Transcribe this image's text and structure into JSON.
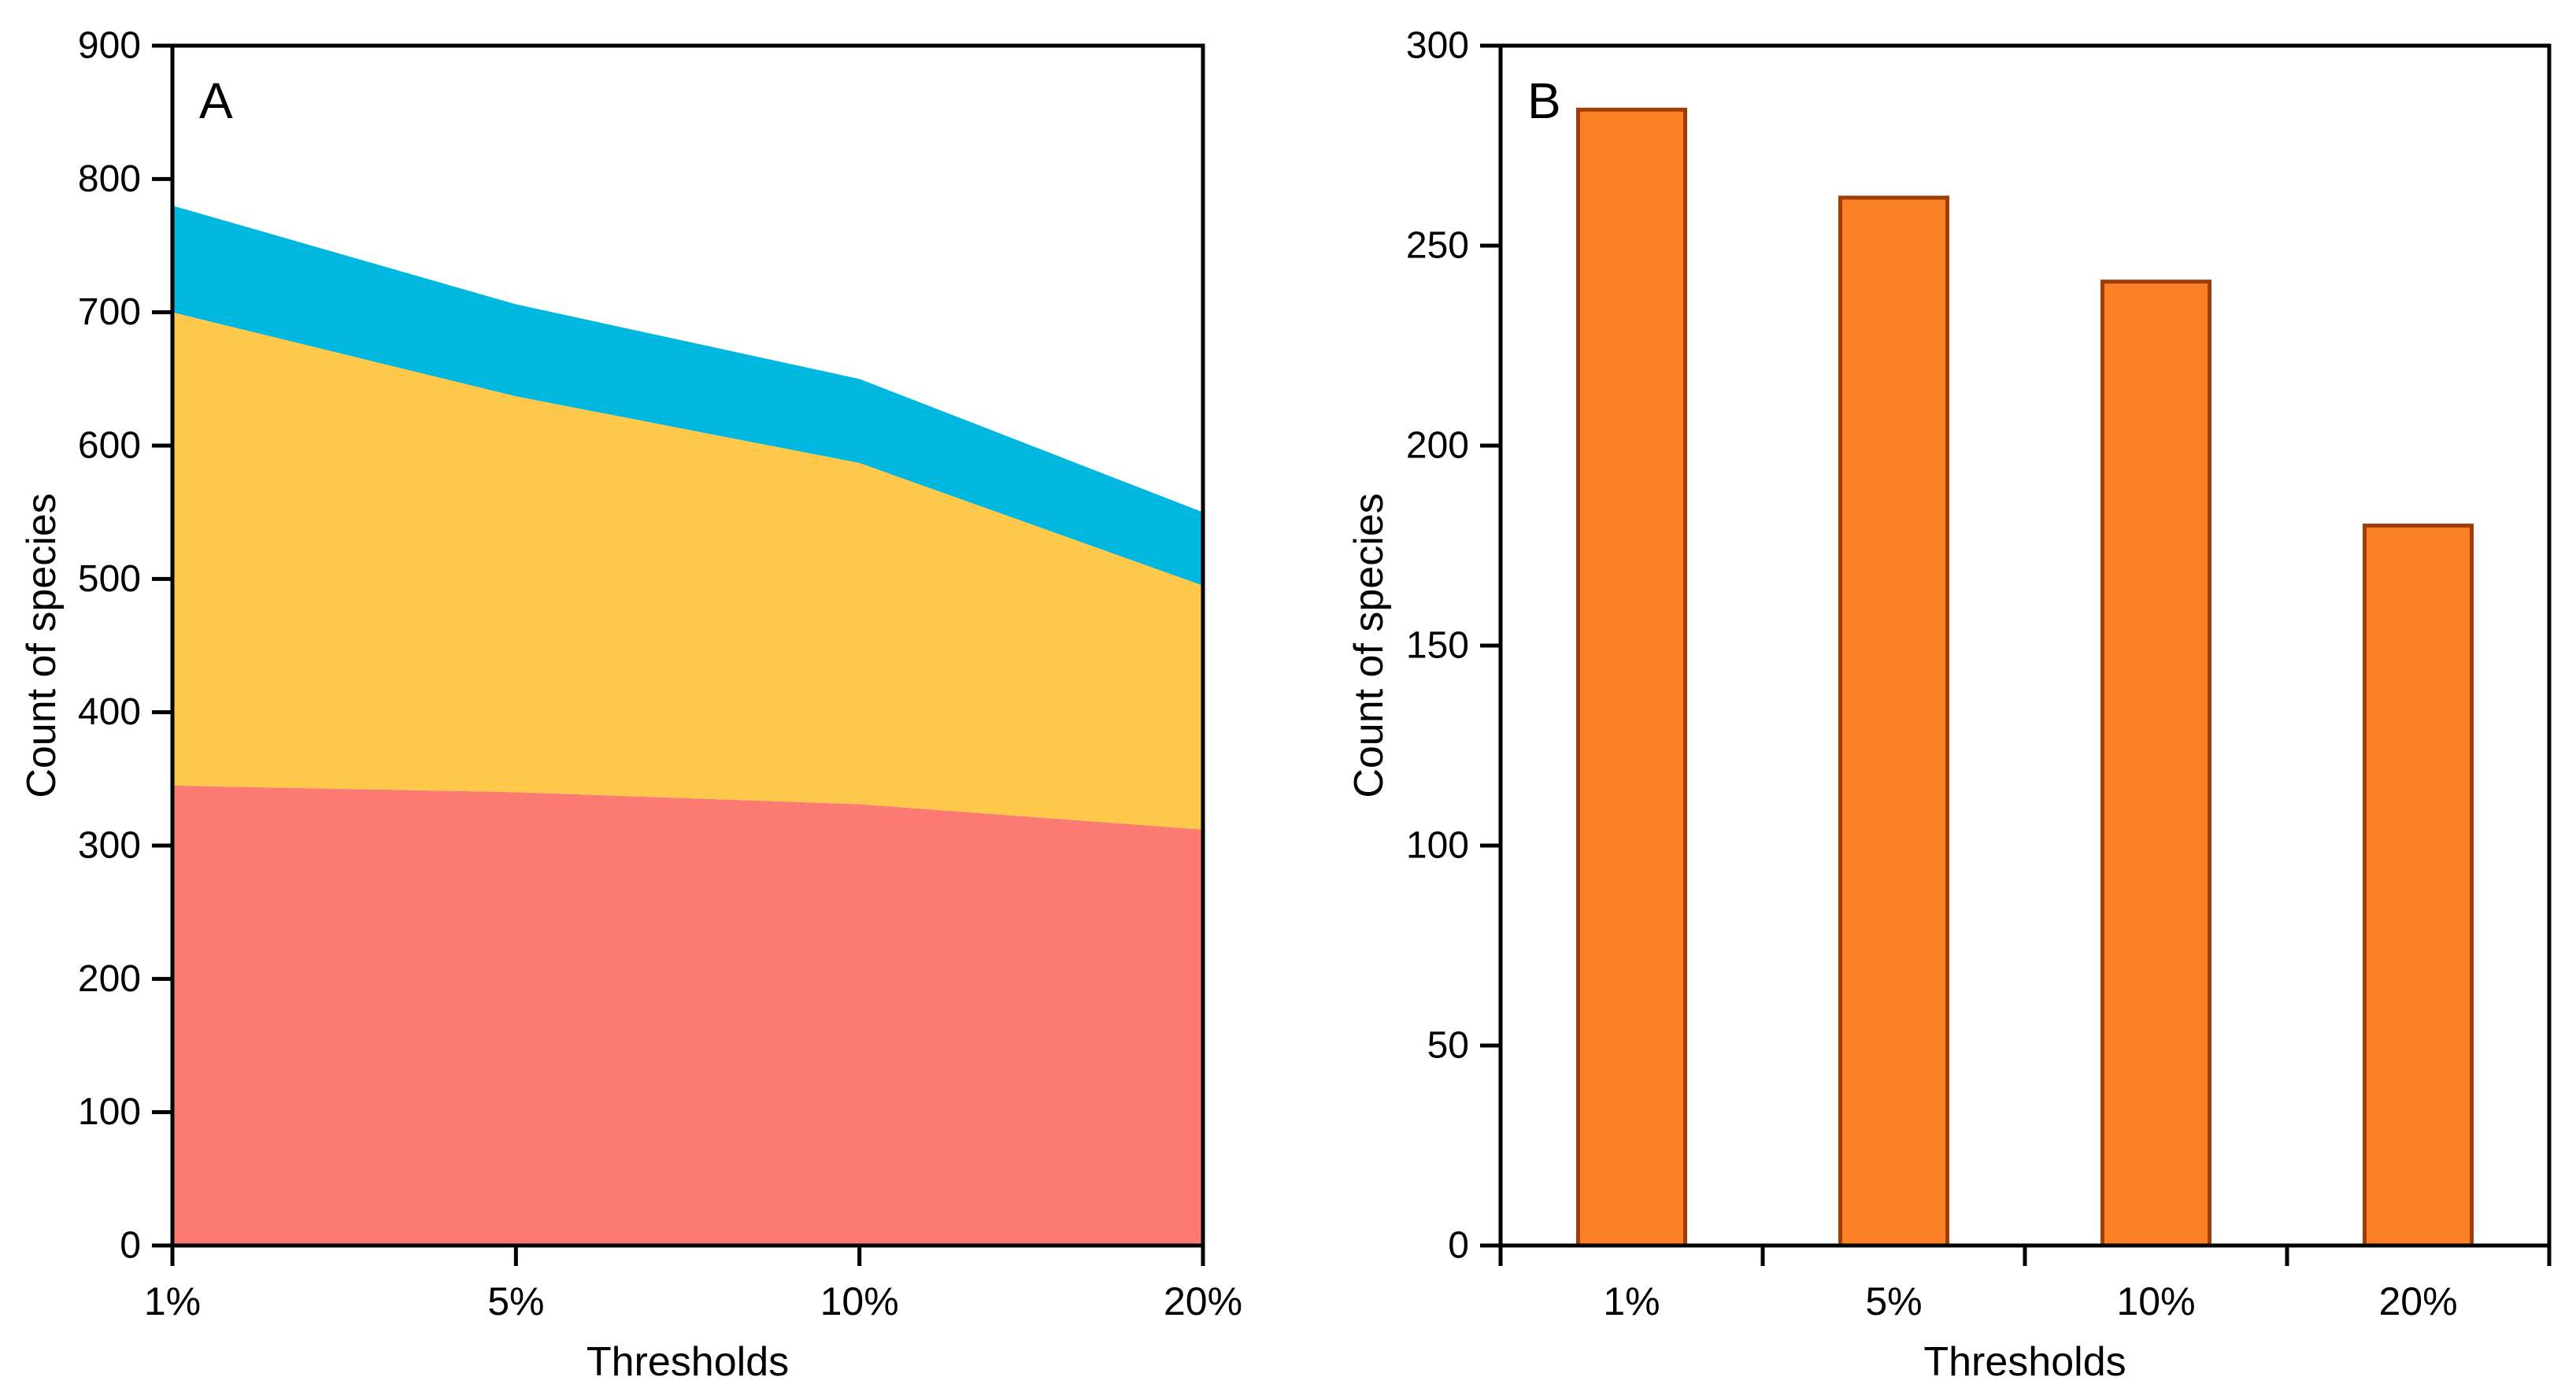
{
  "figure": {
    "background": "#FFFFFF",
    "axis_color": "#000000"
  },
  "chart_data": [
    {
      "panel_label": "A",
      "type": "area",
      "stacked": true,
      "categories": [
        "1%",
        "5%",
        "10%",
        "20%"
      ],
      "series": [
        {
          "name": "red-bottom",
          "color": "#FB7B72",
          "values": [
            345,
            340,
            331,
            312
          ]
        },
        {
          "name": "yellow-middle",
          "color": "#FEC84B",
          "values": [
            355,
            297,
            256,
            183
          ]
        },
        {
          "name": "blue-top",
          "color": "#00B7DF",
          "values": [
            80,
            69,
            63,
            55
          ]
        }
      ],
      "stack_totals": [
        780,
        706,
        650,
        550
      ],
      "xlabel": "Thresholds",
      "ylabel": "Count of species",
      "ylim": [
        0,
        900
      ],
      "ytick_step": 100,
      "legend": "none",
      "grid": false
    },
    {
      "panel_label": "B",
      "type": "bar",
      "categories": [
        "1%",
        "5%",
        "10%",
        "20%"
      ],
      "values": [
        284,
        262,
        241,
        180
      ],
      "bar_color": "#FC8025",
      "bar_border_color": "#A03D05",
      "xlabel": "Thresholds",
      "ylabel": "Count of species",
      "ylim": [
        0,
        300
      ],
      "ytick_step": 50,
      "legend": "none",
      "grid": false
    }
  ]
}
